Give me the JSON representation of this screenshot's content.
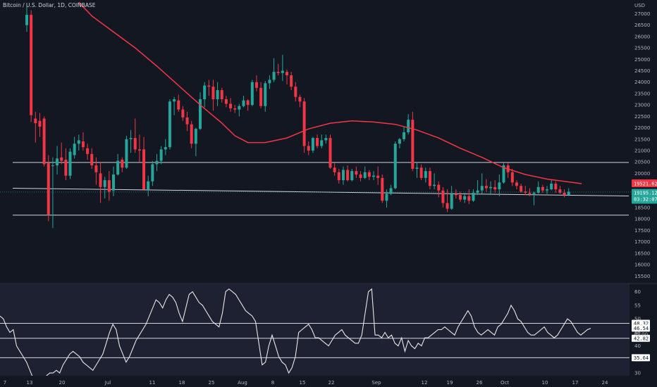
{
  "chart_data": {
    "type": "candlestick",
    "title": "Bitcoin / U.S. Dollar, 1D, COINBASE",
    "currency": "USD",
    "price_ticks": [
      15500,
      16000,
      16500,
      17000,
      17500,
      18000,
      18500,
      19000,
      19500,
      20000,
      20500,
      21000,
      21500,
      22000,
      22500,
      23000,
      23500,
      24000,
      24500,
      25000,
      25500,
      26000,
      26500,
      27000
    ],
    "price_range": [
      15200,
      27600
    ],
    "date_ticks": [
      "7",
      "13",
      "20",
      "Jul",
      "11",
      "18",
      "25",
      "Aug",
      "8",
      "15",
      "22",
      "Sep",
      "12",
      "19",
      "26",
      "Oct",
      "10",
      "17",
      "24"
    ],
    "up_color": "#26a69a",
    "down_color": "#f23645",
    "ma_color": "#f23645",
    "ma_label": "19521.62",
    "last_price_label": "19195.12",
    "last_price_countdown": "03:32:07",
    "candles": [
      {
        "o": 26500,
        "h": 27350,
        "l": 26200,
        "c": 26950
      },
      {
        "o": 26950,
        "h": 27150,
        "l": 22250,
        "c": 22550
      },
      {
        "o": 22400,
        "h": 22700,
        "l": 21350,
        "c": 22200
      },
      {
        "o": 22300,
        "h": 22650,
        "l": 21600,
        "c": 22050
      },
      {
        "o": 22400,
        "h": 22500,
        "l": 20300,
        "c": 20400
      },
      {
        "o": 20450,
        "h": 20800,
        "l": 17900,
        "c": 18200
      },
      {
        "o": 20350,
        "h": 20700,
        "l": 17600,
        "c": 20350
      },
      {
        "o": 20350,
        "h": 21200,
        "l": 19950,
        "c": 20650
      },
      {
        "o": 20700,
        "h": 21350,
        "l": 20400,
        "c": 20550
      },
      {
        "o": 20600,
        "h": 21100,
        "l": 19700,
        "c": 19900
      },
      {
        "o": 19900,
        "h": 21100,
        "l": 19750,
        "c": 20950
      },
      {
        "o": 20800,
        "h": 21600,
        "l": 20650,
        "c": 21300
      },
      {
        "o": 21300,
        "h": 21700,
        "l": 21000,
        "c": 21450
      },
      {
        "o": 21400,
        "h": 21800,
        "l": 21000,
        "c": 21150
      },
      {
        "o": 21100,
        "h": 21300,
        "l": 20600,
        "c": 20850
      },
      {
        "o": 20850,
        "h": 21100,
        "l": 20200,
        "c": 20350
      },
      {
        "o": 20350,
        "h": 20700,
        "l": 19500,
        "c": 20050
      },
      {
        "o": 20000,
        "h": 20500,
        "l": 18700,
        "c": 19400
      },
      {
        "o": 19400,
        "h": 19850,
        "l": 18900,
        "c": 19700
      },
      {
        "o": 19700,
        "h": 20100,
        "l": 18800,
        "c": 19200
      },
      {
        "o": 19250,
        "h": 20300,
        "l": 19000,
        "c": 19950
      },
      {
        "o": 19950,
        "h": 20850,
        "l": 19900,
        "c": 20550
      },
      {
        "o": 20600,
        "h": 20700,
        "l": 20050,
        "c": 20250
      },
      {
        "o": 20250,
        "h": 21650,
        "l": 20200,
        "c": 21500
      },
      {
        "o": 21500,
        "h": 21900,
        "l": 20900,
        "c": 21550
      },
      {
        "o": 21550,
        "h": 22400,
        "l": 20900,
        "c": 21050
      },
      {
        "o": 21050,
        "h": 21700,
        "l": 20500,
        "c": 21000
      },
      {
        "o": 21050,
        "h": 21600,
        "l": 19300,
        "c": 19300
      },
      {
        "o": 19300,
        "h": 19900,
        "l": 19000,
        "c": 19650
      },
      {
        "o": 19650,
        "h": 20550,
        "l": 19450,
        "c": 20400
      },
      {
        "o": 20400,
        "h": 20850,
        "l": 20100,
        "c": 20550
      },
      {
        "o": 20550,
        "h": 21200,
        "l": 20400,
        "c": 21050
      },
      {
        "o": 21050,
        "h": 21500,
        "l": 20800,
        "c": 21150
      },
      {
        "o": 21150,
        "h": 23250,
        "l": 21050,
        "c": 23150
      },
      {
        "o": 23150,
        "h": 23350,
        "l": 22550,
        "c": 23250
      },
      {
        "o": 23200,
        "h": 23450,
        "l": 22700,
        "c": 22800
      },
      {
        "o": 22800,
        "h": 22950,
        "l": 22300,
        "c": 22450
      },
      {
        "o": 22450,
        "h": 22700,
        "l": 21850,
        "c": 22150
      },
      {
        "o": 22150,
        "h": 22300,
        "l": 21100,
        "c": 21300
      },
      {
        "o": 21300,
        "h": 22000,
        "l": 20750,
        "c": 21950
      },
      {
        "o": 21950,
        "h": 23550,
        "l": 21900,
        "c": 23250
      },
      {
        "o": 23250,
        "h": 24000,
        "l": 22900,
        "c": 23850
      },
      {
        "o": 23850,
        "h": 24100,
        "l": 23400,
        "c": 23800
      },
      {
        "o": 23800,
        "h": 24100,
        "l": 22750,
        "c": 23250
      },
      {
        "o": 23250,
        "h": 24000,
        "l": 22950,
        "c": 23650
      },
      {
        "o": 23650,
        "h": 23750,
        "l": 23100,
        "c": 23250
      },
      {
        "o": 23250,
        "h": 23400,
        "l": 22900,
        "c": 23050
      },
      {
        "o": 23050,
        "h": 23300,
        "l": 22700,
        "c": 22850
      },
      {
        "o": 22850,
        "h": 23000,
        "l": 22650,
        "c": 22800
      },
      {
        "o": 22800,
        "h": 23050,
        "l": 22500,
        "c": 22950
      },
      {
        "o": 22950,
        "h": 23400,
        "l": 22900,
        "c": 23200
      },
      {
        "o": 23200,
        "h": 23250,
        "l": 22750,
        "c": 23000
      },
      {
        "o": 23000,
        "h": 24100,
        "l": 22950,
        "c": 24000
      },
      {
        "o": 24000,
        "h": 24300,
        "l": 23600,
        "c": 23750
      },
      {
        "o": 23750,
        "h": 24000,
        "l": 22850,
        "c": 22950
      },
      {
        "o": 22950,
        "h": 24050,
        "l": 22700,
        "c": 23950
      },
      {
        "o": 23950,
        "h": 24300,
        "l": 23700,
        "c": 24100
      },
      {
        "o": 24100,
        "h": 25050,
        "l": 24000,
        "c": 24450
      },
      {
        "o": 24450,
        "h": 24800,
        "l": 24300,
        "c": 24400
      },
      {
        "o": 24400,
        "h": 25200,
        "l": 24050,
        "c": 24500
      },
      {
        "o": 24450,
        "h": 24550,
        "l": 23900,
        "c": 24300
      },
      {
        "o": 24300,
        "h": 24450,
        "l": 23650,
        "c": 23800
      },
      {
        "o": 23800,
        "h": 24000,
        "l": 23150,
        "c": 23350
      },
      {
        "o": 23350,
        "h": 23450,
        "l": 22900,
        "c": 23150
      },
      {
        "o": 23150,
        "h": 23300,
        "l": 20900,
        "c": 21200
      },
      {
        "o": 21200,
        "h": 21400,
        "l": 20800,
        "c": 21000
      },
      {
        "o": 21000,
        "h": 21600,
        "l": 20900,
        "c": 21550
      },
      {
        "o": 21550,
        "h": 21700,
        "l": 21100,
        "c": 21200
      },
      {
        "o": 21200,
        "h": 21700,
        "l": 21100,
        "c": 21450
      },
      {
        "o": 21450,
        "h": 21700,
        "l": 21300,
        "c": 21550
      },
      {
        "o": 21550,
        "h": 21700,
        "l": 20200,
        "c": 20250
      },
      {
        "o": 20250,
        "h": 20450,
        "l": 19900,
        "c": 20050
      },
      {
        "o": 20050,
        "h": 20200,
        "l": 19550,
        "c": 19700
      },
      {
        "o": 19700,
        "h": 20300,
        "l": 19500,
        "c": 20150
      },
      {
        "o": 20150,
        "h": 20350,
        "l": 19650,
        "c": 19700
      },
      {
        "o": 19700,
        "h": 20200,
        "l": 19650,
        "c": 20100
      },
      {
        "o": 20100,
        "h": 20300,
        "l": 19800,
        "c": 19950
      },
      {
        "o": 19950,
        "h": 20100,
        "l": 19650,
        "c": 19800
      },
      {
        "o": 19800,
        "h": 20300,
        "l": 19750,
        "c": 20050
      },
      {
        "o": 20050,
        "h": 20150,
        "l": 19700,
        "c": 19850
      },
      {
        "o": 19850,
        "h": 20100,
        "l": 19700,
        "c": 19900
      },
      {
        "o": 19900,
        "h": 20300,
        "l": 19500,
        "c": 19800
      },
      {
        "o": 19800,
        "h": 19950,
        "l": 18700,
        "c": 18800
      },
      {
        "o": 18800,
        "h": 19300,
        "l": 18500,
        "c": 19100
      },
      {
        "o": 19100,
        "h": 19500,
        "l": 19050,
        "c": 19350
      },
      {
        "o": 19350,
        "h": 21400,
        "l": 19300,
        "c": 21300
      },
      {
        "o": 21300,
        "h": 21550,
        "l": 21100,
        "c": 21500
      },
      {
        "o": 21500,
        "h": 22050,
        "l": 21400,
        "c": 21800
      },
      {
        "o": 21800,
        "h": 22600,
        "l": 21700,
        "c": 22350
      },
      {
        "o": 22350,
        "h": 22700,
        "l": 20100,
        "c": 20200
      },
      {
        "o": 20200,
        "h": 20500,
        "l": 19800,
        "c": 20250
      },
      {
        "o": 20250,
        "h": 20400,
        "l": 19700,
        "c": 19800
      },
      {
        "o": 19800,
        "h": 20250,
        "l": 19600,
        "c": 20100
      },
      {
        "o": 20100,
        "h": 20250,
        "l": 19300,
        "c": 19450
      },
      {
        "o": 19450,
        "h": 20000,
        "l": 19300,
        "c": 19500
      },
      {
        "o": 19500,
        "h": 19650,
        "l": 18950,
        "c": 19250
      },
      {
        "o": 19250,
        "h": 19400,
        "l": 18500,
        "c": 18700
      },
      {
        "o": 18700,
        "h": 19300,
        "l": 18300,
        "c": 18450
      },
      {
        "o": 18450,
        "h": 19450,
        "l": 18400,
        "c": 19100
      },
      {
        "o": 19100,
        "h": 19300,
        "l": 18900,
        "c": 19050
      },
      {
        "o": 19050,
        "h": 19200,
        "l": 18750,
        "c": 18850
      },
      {
        "o": 18850,
        "h": 19150,
        "l": 18700,
        "c": 19000
      },
      {
        "o": 19000,
        "h": 19300,
        "l": 18650,
        "c": 18800
      },
      {
        "o": 18800,
        "h": 19300,
        "l": 18750,
        "c": 19150
      },
      {
        "o": 19150,
        "h": 19700,
        "l": 19050,
        "c": 19250
      },
      {
        "o": 19250,
        "h": 20000,
        "l": 19100,
        "c": 19450
      },
      {
        "o": 19450,
        "h": 19750,
        "l": 19200,
        "c": 19350
      },
      {
        "o": 19350,
        "h": 19650,
        "l": 19050,
        "c": 19400
      },
      {
        "o": 19400,
        "h": 19700,
        "l": 19150,
        "c": 19300
      },
      {
        "o": 19300,
        "h": 19950,
        "l": 19000,
        "c": 19600
      },
      {
        "o": 19600,
        "h": 20450,
        "l": 19550,
        "c": 20350
      },
      {
        "o": 20350,
        "h": 20450,
        "l": 19800,
        "c": 20050
      },
      {
        "o": 20050,
        "h": 20200,
        "l": 19450,
        "c": 19600
      },
      {
        "o": 19600,
        "h": 19700,
        "l": 19300,
        "c": 19450
      },
      {
        "o": 19450,
        "h": 19550,
        "l": 19150,
        "c": 19200
      },
      {
        "o": 19200,
        "h": 19450,
        "l": 19050,
        "c": 19150
      },
      {
        "o": 19150,
        "h": 19350,
        "l": 19000,
        "c": 19100
      },
      {
        "o": 19100,
        "h": 19200,
        "l": 18600,
        "c": 19150
      },
      {
        "o": 19150,
        "h": 19650,
        "l": 19100,
        "c": 19400
      },
      {
        "o": 19400,
        "h": 19500,
        "l": 19150,
        "c": 19250
      },
      {
        "o": 19250,
        "h": 19450,
        "l": 19100,
        "c": 19300
      },
      {
        "o": 19300,
        "h": 19700,
        "l": 19250,
        "c": 19550
      },
      {
        "o": 19550,
        "h": 19650,
        "l": 19150,
        "c": 19300
      },
      {
        "o": 19300,
        "h": 19450,
        "l": 19100,
        "c": 19150
      },
      {
        "o": 19150,
        "h": 19300,
        "l": 18950,
        "c": 19050
      },
      {
        "o": 19050,
        "h": 19350,
        "l": 19000,
        "c": 19195
      }
    ],
    "moving_average": [
      {
        "i": 12,
        "v": 27500
      },
      {
        "i": 15,
        "v": 26900
      },
      {
        "i": 20,
        "v": 26200
      },
      {
        "i": 25,
        "v": 25500
      },
      {
        "i": 30,
        "v": 24700
      },
      {
        "i": 35,
        "v": 23850
      },
      {
        "i": 40,
        "v": 23000
      },
      {
        "i": 45,
        "v": 22200
      },
      {
        "i": 48,
        "v": 21650
      },
      {
        "i": 51,
        "v": 21350
      },
      {
        "i": 55,
        "v": 21350
      },
      {
        "i": 60,
        "v": 21550
      },
      {
        "i": 65,
        "v": 21950
      },
      {
        "i": 70,
        "v": 22200
      },
      {
        "i": 75,
        "v": 22300
      },
      {
        "i": 80,
        "v": 22250
      },
      {
        "i": 85,
        "v": 22150
      },
      {
        "i": 90,
        "v": 21900
      },
      {
        "i": 95,
        "v": 21550
      },
      {
        "i": 100,
        "v": 21100
      },
      {
        "i": 105,
        "v": 20700
      },
      {
        "i": 110,
        "v": 20250
      },
      {
        "i": 115,
        "v": 19950
      },
      {
        "i": 120,
        "v": 19750
      },
      {
        "i": 128,
        "v": 19550
      }
    ],
    "horizontal_lines": [
      {
        "a": 20480,
        "b": 20480
      },
      {
        "a": 19350,
        "b": 19010
      },
      {
        "a": 18170,
        "b": 18170
      }
    ],
    "rsi": {
      "ticks": [
        30,
        35,
        40,
        45,
        50,
        55,
        60
      ],
      "range": [
        29,
        63
      ],
      "levels": [
        {
          "value": 48.32,
          "label": "48.32"
        },
        {
          "value": 42.82,
          "label": "42.82"
        },
        {
          "value": 35.64,
          "label": "35.64"
        }
      ],
      "current_label": "46.54",
      "hidden_label": "45.00",
      "values": [
        51,
        50,
        47,
        45,
        46,
        40,
        38,
        36,
        34,
        31,
        28,
        20,
        18,
        22,
        29,
        30,
        30,
        31,
        30,
        33,
        35,
        37,
        38,
        37,
        36,
        34,
        33,
        32,
        31,
        33,
        35,
        37,
        41,
        45,
        48,
        46,
        40,
        37,
        34,
        36,
        39,
        42,
        44,
        46,
        48,
        51,
        54,
        57,
        56,
        54,
        57,
        59,
        58,
        56,
        52,
        49,
        54,
        59,
        60,
        58,
        56,
        55,
        53,
        51,
        49,
        48,
        47,
        52,
        60,
        61,
        60,
        59,
        57,
        55,
        53,
        52,
        51,
        49,
        41,
        33,
        34,
        40,
        44,
        40,
        36,
        34,
        33,
        30,
        32,
        36,
        45,
        46,
        47,
        48,
        46,
        43,
        43,
        42,
        41,
        40,
        42,
        44,
        45,
        46,
        44,
        43,
        42,
        41,
        41,
        44,
        52,
        60,
        61,
        44,
        44,
        43,
        45,
        43,
        44,
        41,
        40,
        43,
        38,
        42,
        40,
        39,
        41,
        40,
        43,
        43,
        44,
        45,
        46,
        46,
        47,
        46,
        45,
        44,
        47,
        49,
        51,
        53,
        51,
        47,
        45,
        44,
        45,
        46,
        45,
        44,
        47,
        48,
        50,
        52,
        55,
        53,
        50,
        49,
        47,
        45,
        44,
        44,
        45,
        46,
        47,
        45,
        44,
        43,
        44,
        46,
        48,
        50,
        49,
        47,
        45,
        44,
        45,
        46,
        46.5
      ],
      "bg_color": "#1e2132"
    }
  }
}
